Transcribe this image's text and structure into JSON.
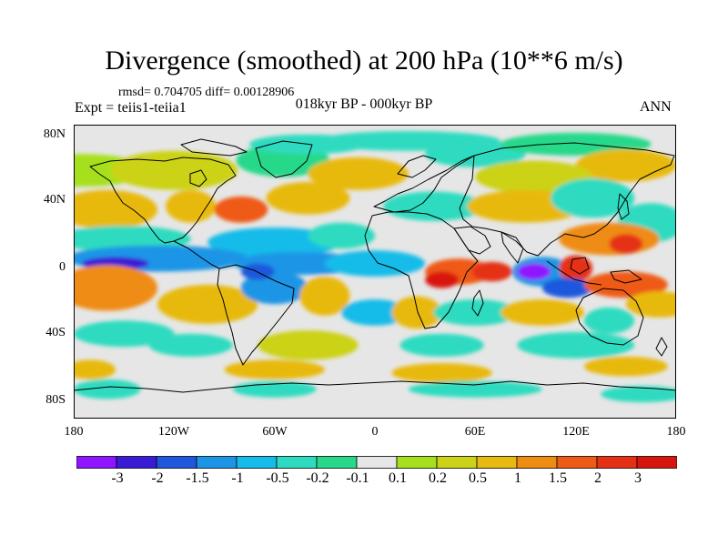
{
  "title": "Divergence (smoothed) at 200 hPa (10**6 m/s)",
  "stats": "rmsd= 0.704705 diff= 0.00128906",
  "experiment": "Expt = teiis1-teiia1",
  "period": "018kyr BP - 000kyr BP",
  "season": "ANN",
  "lat_labels": [
    "80N",
    "40N",
    "0",
    "40S",
    "80S"
  ],
  "lon_labels": [
    "180",
    "120W",
    "60W",
    "0",
    "60E",
    "120E",
    "180"
  ],
  "colorbar": {
    "labels": [
      "-3",
      "-2",
      "-1.5",
      "-1",
      "-0.5",
      "-0.2",
      "-0.1",
      "0.1",
      "0.2",
      "0.5",
      "1",
      "1.5",
      "2",
      "3"
    ],
    "colors": [
      "#8f14ff",
      "#3a1bd6",
      "#1f58dd",
      "#1d95e6",
      "#16bce9",
      "#2edbc0",
      "#26d98a",
      "#e6e6e6",
      "#a6e01c",
      "#ccd218",
      "#e8b911",
      "#ef8c12",
      "#ef5a15",
      "#e53015",
      "#d8140f"
    ]
  },
  "map_data": {
    "projection": "cylindrical-equidistant",
    "lon_range": [
      -180,
      180
    ],
    "lat_range": [
      -90,
      90
    ],
    "regions": [
      {
        "lon": -175,
        "lat": 62,
        "rx": 40,
        "ry": 10,
        "cls": 8
      },
      {
        "lon": -120,
        "lat": 62,
        "rx": 38,
        "ry": 12,
        "cls": 9
      },
      {
        "lon": -55,
        "lat": 68,
        "rx": 28,
        "ry": 10,
        "cls": 6
      },
      {
        "lon": -40,
        "lat": 78,
        "rx": 35,
        "ry": 6,
        "cls": 5
      },
      {
        "lon": 20,
        "lat": 80,
        "rx": 55,
        "ry": 6,
        "cls": 5
      },
      {
        "lon": 60,
        "lat": 72,
        "rx": 30,
        "ry": 8,
        "cls": 5
      },
      {
        "lon": 120,
        "lat": 78,
        "rx": 45,
        "ry": 7,
        "cls": 6
      },
      {
        "lon": 150,
        "lat": 65,
        "rx": 30,
        "ry": 10,
        "cls": 10
      },
      {
        "lon": -10,
        "lat": 60,
        "rx": 30,
        "ry": 10,
        "cls": 10
      },
      {
        "lon": 95,
        "lat": 58,
        "rx": 35,
        "ry": 10,
        "cls": 9
      },
      {
        "lon": -160,
        "lat": 38,
        "rx": 30,
        "ry": 12,
        "cls": 10
      },
      {
        "lon": -150,
        "lat": 20,
        "rx": 40,
        "ry": 8,
        "cls": 5
      },
      {
        "lon": -110,
        "lat": 40,
        "rx": 15,
        "ry": 10,
        "cls": 10
      },
      {
        "lon": -80,
        "lat": 38,
        "rx": 16,
        "ry": 8,
        "cls": 12
      },
      {
        "lon": -40,
        "lat": 45,
        "rx": 25,
        "ry": 10,
        "cls": 10
      },
      {
        "lon": -60,
        "lat": 18,
        "rx": 40,
        "ry": 9,
        "cls": 4
      },
      {
        "lon": -20,
        "lat": 22,
        "rx": 20,
        "ry": 8,
        "cls": 5
      },
      {
        "lon": 35,
        "lat": 40,
        "rx": 30,
        "ry": 9,
        "cls": 5
      },
      {
        "lon": 90,
        "lat": 40,
        "rx": 35,
        "ry": 10,
        "cls": 10
      },
      {
        "lon": 130,
        "lat": 45,
        "rx": 25,
        "ry": 12,
        "cls": 5
      },
      {
        "lon": 165,
        "lat": 30,
        "rx": 20,
        "ry": 12,
        "cls": 5
      },
      {
        "lon": 140,
        "lat": 20,
        "rx": 30,
        "ry": 10,
        "cls": 11
      },
      {
        "lon": 150,
        "lat": 17,
        "rx": 10,
        "ry": 6,
        "cls": 13
      },
      {
        "lon": -130,
        "lat": 8,
        "rx": 55,
        "ry": 8,
        "cls": 3
      },
      {
        "lon": -155,
        "lat": 5,
        "rx": 20,
        "ry": 4,
        "cls": 1
      },
      {
        "lon": -45,
        "lat": 5,
        "rx": 40,
        "ry": 7,
        "cls": 3
      },
      {
        "lon": 0,
        "lat": 5,
        "rx": 30,
        "ry": 8,
        "cls": 4
      },
      {
        "lon": 50,
        "lat": 0,
        "rx": 20,
        "ry": 8,
        "cls": 12
      },
      {
        "lon": 40,
        "lat": -5,
        "rx": 10,
        "ry": 5,
        "cls": 14
      },
      {
        "lon": 70,
        "lat": 0,
        "rx": 12,
        "ry": 6,
        "cls": 13
      },
      {
        "lon": 100,
        "lat": 0,
        "rx": 18,
        "ry": 9,
        "cls": 3
      },
      {
        "lon": 95,
        "lat": 0,
        "rx": 10,
        "ry": 5,
        "cls": 0
      },
      {
        "lon": 120,
        "lat": 2,
        "rx": 10,
        "ry": 8,
        "cls": 13
      },
      {
        "lon": 115,
        "lat": -10,
        "rx": 15,
        "ry": 6,
        "cls": 2
      },
      {
        "lon": 150,
        "lat": -8,
        "rx": 25,
        "ry": 8,
        "cls": 12
      },
      {
        "lon": 170,
        "lat": -20,
        "rx": 20,
        "ry": 8,
        "cls": 10
      },
      {
        "lon": -160,
        "lat": -10,
        "rx": 30,
        "ry": 14,
        "cls": 11
      },
      {
        "lon": -100,
        "lat": -20,
        "rx": 30,
        "ry": 12,
        "cls": 10
      },
      {
        "lon": -60,
        "lat": -10,
        "rx": 20,
        "ry": 10,
        "cls": 3
      },
      {
        "lon": -70,
        "lat": 0,
        "rx": 10,
        "ry": 5,
        "cls": 2
      },
      {
        "lon": -30,
        "lat": -15,
        "rx": 15,
        "ry": 12,
        "cls": 10
      },
      {
        "lon": 0,
        "lat": -25,
        "rx": 20,
        "ry": 8,
        "cls": 4
      },
      {
        "lon": 25,
        "lat": -25,
        "rx": 15,
        "ry": 10,
        "cls": 10
      },
      {
        "lon": 60,
        "lat": -25,
        "rx": 25,
        "ry": 8,
        "cls": 5
      },
      {
        "lon": 100,
        "lat": -25,
        "rx": 25,
        "ry": 8,
        "cls": 10
      },
      {
        "lon": 140,
        "lat": -30,
        "rx": 15,
        "ry": 8,
        "cls": 5
      },
      {
        "lon": -150,
        "lat": -38,
        "rx": 30,
        "ry": 8,
        "cls": 5
      },
      {
        "lon": -110,
        "lat": -45,
        "rx": 25,
        "ry": 7,
        "cls": 5
      },
      {
        "lon": -40,
        "lat": -45,
        "rx": 30,
        "ry": 9,
        "cls": 9
      },
      {
        "lon": 40,
        "lat": -45,
        "rx": 25,
        "ry": 7,
        "cls": 5
      },
      {
        "lon": 120,
        "lat": -45,
        "rx": 35,
        "ry": 8,
        "cls": 5
      },
      {
        "lon": -170,
        "lat": -60,
        "rx": 15,
        "ry": 6,
        "cls": 10
      },
      {
        "lon": -60,
        "lat": -60,
        "rx": 30,
        "ry": 6,
        "cls": 10
      },
      {
        "lon": 40,
        "lat": -62,
        "rx": 30,
        "ry": 6,
        "cls": 10
      },
      {
        "lon": 150,
        "lat": -58,
        "rx": 25,
        "ry": 6,
        "cls": 10
      },
      {
        "lon": -160,
        "lat": -72,
        "rx": 20,
        "ry": 6,
        "cls": 5
      },
      {
        "lon": -60,
        "lat": -72,
        "rx": 25,
        "ry": 5,
        "cls": 5
      },
      {
        "lon": 60,
        "lat": -72,
        "rx": 40,
        "ry": 5,
        "cls": 5
      },
      {
        "lon": 160,
        "lat": -75,
        "rx": 25,
        "ry": 5,
        "cls": 5
      }
    ]
  }
}
